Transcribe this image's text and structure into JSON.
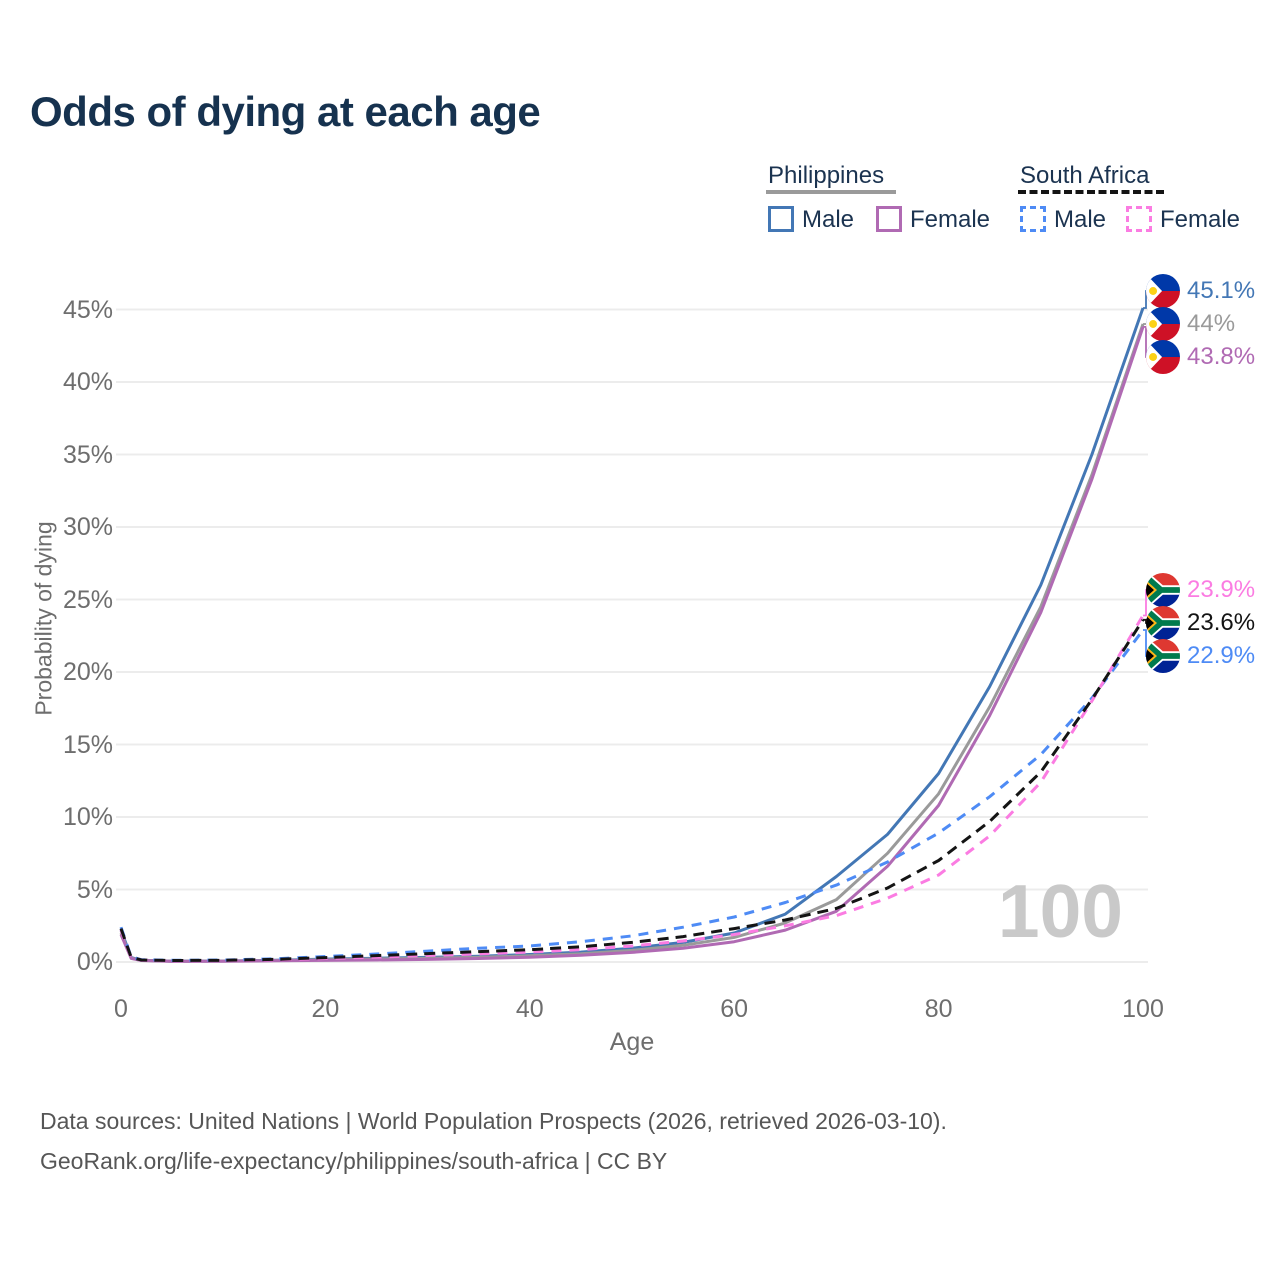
{
  "title": "Odds of dying at each age",
  "legend": {
    "groups": [
      {
        "label": "Philippines",
        "line_color": "#9a9a9a",
        "line_style": "solid",
        "items": [
          {
            "label": "Male",
            "color": "#4377b5",
            "style": "solid"
          },
          {
            "label": "Female",
            "color": "#b06ab3",
            "style": "solid"
          }
        ]
      },
      {
        "label": "South Africa",
        "line_color": "#141414",
        "line_style": "dashed",
        "items": [
          {
            "label": "Male",
            "color": "#4e8bf5",
            "style": "dashed"
          },
          {
            "label": "Female",
            "color": "#fb7ce2",
            "style": "dashed"
          }
        ]
      }
    ]
  },
  "y_axis": {
    "title": "Probability of dying",
    "ticks": [
      "0%",
      "5%",
      "10%",
      "15%",
      "20%",
      "25%",
      "30%",
      "35%",
      "40%",
      "45%"
    ]
  },
  "x_axis": {
    "title": "Age",
    "ticks": [
      "0",
      "20",
      "40",
      "60",
      "80",
      "100"
    ]
  },
  "watermark": "100",
  "end_labels": [
    {
      "series": "ph_male",
      "value": "45.1%",
      "color": "#4377b5",
      "flag": "ph"
    },
    {
      "series": "ph_total",
      "value": "44%",
      "color": "#9a9a9a",
      "flag": "ph"
    },
    {
      "series": "ph_female",
      "value": "43.8%",
      "color": "#b06ab3",
      "flag": "ph"
    },
    {
      "series": "sa_female",
      "value": "23.9%",
      "color": "#fb7ce2",
      "flag": "za"
    },
    {
      "series": "sa_total",
      "value": "23.6%",
      "color": "#141414",
      "flag": "za"
    },
    {
      "series": "sa_male",
      "value": "22.9%",
      "color": "#4e8bf5",
      "flag": "za"
    }
  ],
  "footer": {
    "line1": "Data sources: United Nations | World Population Prospects (2026, retrieved 2026-03-10).",
    "line2": "GeoRank.org/life-expectancy/philippines/south-africa | CC BY"
  },
  "chart_data": {
    "type": "line",
    "title": "Odds of dying at each age",
    "xlabel": "Age",
    "ylabel": "Probability of dying",
    "y_unit": "percent",
    "xlim": [
      0,
      100
    ],
    "ylim": [
      0,
      47
    ],
    "grid": "horizontal",
    "legend_position": "top-right",
    "x": [
      0,
      1,
      2,
      5,
      10,
      15,
      20,
      25,
      30,
      35,
      40,
      45,
      50,
      55,
      60,
      65,
      70,
      75,
      80,
      85,
      90,
      95,
      100
    ],
    "series": [
      {
        "name": "ph_male",
        "country": "Philippines",
        "sex": "Male",
        "color": "#4377b5",
        "dash": "",
        "end_label": "45.1%",
        "values": [
          2.2,
          0.3,
          0.12,
          0.06,
          0.07,
          0.12,
          0.2,
          0.26,
          0.32,
          0.4,
          0.52,
          0.68,
          0.95,
          1.35,
          2.0,
          3.3,
          5.9,
          8.8,
          13.0,
          19.0,
          26.0,
          35.0,
          45.1
        ]
      },
      {
        "name": "ph_total",
        "country": "Philippines",
        "sex": "Both",
        "color": "#9a9a9a",
        "dash": "",
        "end_label": "44%",
        "values": [
          2.0,
          0.27,
          0.11,
          0.05,
          0.06,
          0.1,
          0.16,
          0.21,
          0.26,
          0.33,
          0.43,
          0.57,
          0.8,
          1.15,
          1.7,
          2.7,
          4.3,
          7.5,
          11.6,
          17.6,
          24.5,
          33.6,
          44.0
        ]
      },
      {
        "name": "ph_female",
        "country": "Philippines",
        "sex": "Female",
        "color": "#b06ab3",
        "dash": "",
        "end_label": "43.8%",
        "values": [
          1.9,
          0.25,
          0.1,
          0.04,
          0.05,
          0.08,
          0.11,
          0.14,
          0.18,
          0.24,
          0.33,
          0.46,
          0.66,
          0.95,
          1.4,
          2.2,
          3.5,
          6.6,
          10.8,
          17.0,
          24.1,
          33.3,
          43.8
        ]
      },
      {
        "name": "sa_male",
        "country": "South Africa",
        "sex": "Male",
        "color": "#4e8bf5",
        "dash": "10 8",
        "end_label": "22.9%",
        "values": [
          2.4,
          0.35,
          0.16,
          0.12,
          0.14,
          0.22,
          0.38,
          0.55,
          0.75,
          0.95,
          1.1,
          1.4,
          1.8,
          2.4,
          3.1,
          4.1,
          5.3,
          6.9,
          8.9,
          11.4,
          14.3,
          18.2,
          22.9
        ]
      },
      {
        "name": "sa_female",
        "country": "South Africa",
        "sex": "Female",
        "color": "#fb7ce2",
        "dash": "10 8",
        "end_label": "23.9%",
        "values": [
          2.2,
          0.3,
          0.13,
          0.09,
          0.1,
          0.15,
          0.24,
          0.34,
          0.45,
          0.56,
          0.68,
          0.85,
          1.1,
          1.45,
          1.9,
          2.5,
          3.2,
          4.4,
          6.0,
          8.7,
          12.4,
          18.0,
          23.9
        ]
      },
      {
        "name": "sa_total",
        "country": "South Africa",
        "sex": "Both",
        "color": "#141414",
        "dash": "11 7",
        "end_label": "23.6%",
        "values": [
          2.3,
          0.32,
          0.14,
          0.1,
          0.12,
          0.18,
          0.3,
          0.44,
          0.58,
          0.72,
          0.85,
          1.05,
          1.35,
          1.75,
          2.3,
          2.9,
          3.7,
          5.1,
          7.0,
          9.7,
          13.1,
          18.1,
          23.6
        ]
      }
    ]
  }
}
